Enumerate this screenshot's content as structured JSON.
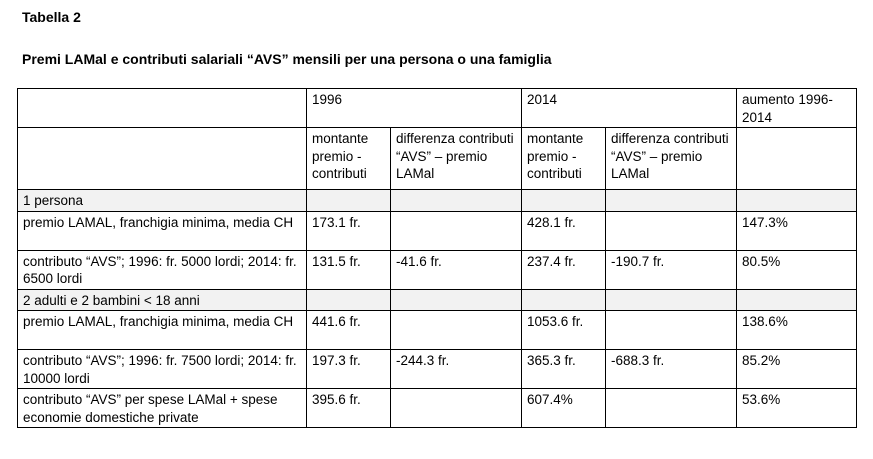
{
  "caption": "Tabella 2",
  "title": "Premi LAMal e contributi salariali “AVS” mensili per una persona o una famiglia",
  "table": {
    "year1": "1996",
    "year2": "2014",
    "increase_header": "aumento 1996-2014",
    "sub_amount": "montante premio - contributi",
    "sub_diff": "differenza contributi “AVS” – premio LAMal",
    "sections": [
      {
        "label": "1 persona",
        "rows": [
          {
            "label": "premio LAMAL, franchigia minima, media CH",
            "a1996": "173.1 fr.",
            "d1996": "",
            "a2014": "428.1 fr.",
            "d2014": "",
            "increase": "147.3%"
          },
          {
            "label": "contributo “AVS”; 1996: fr. 5000 lordi; 2014: fr. 6500 lordi",
            "a1996": "131.5 fr.",
            "d1996": "-41.6 fr.",
            "a2014": "237.4 fr.",
            "d2014": "-190.7 fr.",
            "increase": "80.5%"
          }
        ]
      },
      {
        "label": "2 adulti e 2 bambini < 18 anni",
        "rows": [
          {
            "label": "premio LAMAL, franchigia minima, media CH",
            "a1996": "441.6 fr.",
            "d1996": "",
            "a2014": "1053.6 fr.",
            "d2014": "",
            "increase": "138.6%"
          },
          {
            "label": "contributo “AVS”; 1996: fr. 7500 lordi; 2014: fr. 10000 lordi",
            "a1996": "197.3 fr.",
            "d1996": "-244.3 fr.",
            "a2014": "365.3 fr.",
            "d2014": "-688.3 fr.",
            "increase": "85.2%"
          },
          {
            "label": "contributo “AVS” per spese LAMal + spese economie domestiche private",
            "a1996": "395.6 fr.",
            "d1996": "",
            "a2014": "607.4%",
            "d2014": "",
            "increase": "53.6%"
          }
        ]
      }
    ]
  }
}
